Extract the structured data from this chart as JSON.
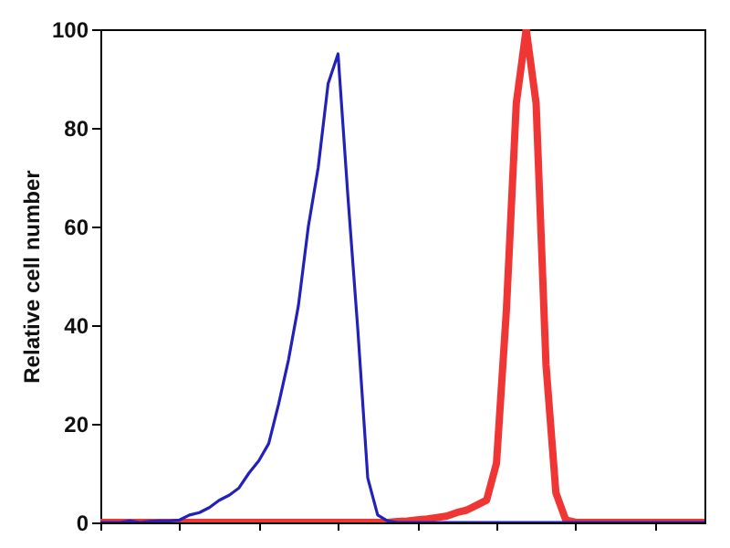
{
  "chart_data": {
    "type": "line",
    "ylabel": "Relative cell number",
    "ylim": [
      0,
      100
    ],
    "yticks": [
      0,
      20,
      40,
      60,
      80,
      100
    ],
    "tick_labels": "y",
    "categories": [
      null,
      null,
      null,
      null,
      null,
      null,
      null,
      null,
      null,
      null,
      null,
      null,
      null,
      null,
      null,
      null,
      null,
      null,
      null,
      null,
      null,
      null,
      null,
      null,
      null,
      null,
      null,
      null,
      null,
      null,
      null,
      null,
      null,
      null,
      null,
      null,
      null,
      null,
      null,
      null,
      null,
      null,
      null,
      null,
      null,
      null,
      null,
      null,
      null,
      null,
      null,
      null,
      null,
      null,
      null,
      null,
      null,
      null,
      null,
      null,
      null,
      null
    ],
    "series": [
      {
        "color": "#2222bb",
        "values": [
          0,
          0,
          0,
          0.3,
          0,
          0.2,
          0.3,
          0.3,
          0.5,
          1.5,
          2,
          3,
          4.5,
          5.5,
          7,
          10,
          12.5,
          16,
          24,
          33,
          44,
          60,
          72,
          89,
          95,
          66,
          39,
          9,
          1.5,
          0.3,
          0,
          0,
          0,
          0,
          0,
          0,
          0,
          0,
          0,
          0,
          0,
          0,
          0,
          0,
          0,
          0,
          0,
          0,
          0,
          0,
          0,
          0,
          0,
          0,
          0,
          0,
          0,
          0,
          0,
          0,
          0,
          0
        ]
      },
      {
        "color": "#f03535",
        "values": [
          0,
          0,
          0,
          0,
          0,
          0,
          0,
          0,
          0,
          0,
          0,
          0,
          0,
          0,
          0,
          0,
          0,
          0,
          0,
          0,
          0,
          0,
          0,
          0,
          0,
          0,
          0,
          0,
          0,
          0,
          0.2,
          0.3,
          0.5,
          0.7,
          1,
          1.3,
          2,
          2.5,
          3.5,
          4.5,
          12,
          43,
          85,
          100,
          85,
          32,
          6,
          0.5,
          0,
          0,
          0,
          0,
          0,
          0,
          0,
          0,
          0,
          0,
          0,
          0,
          0,
          0
        ]
      }
    ]
  }
}
